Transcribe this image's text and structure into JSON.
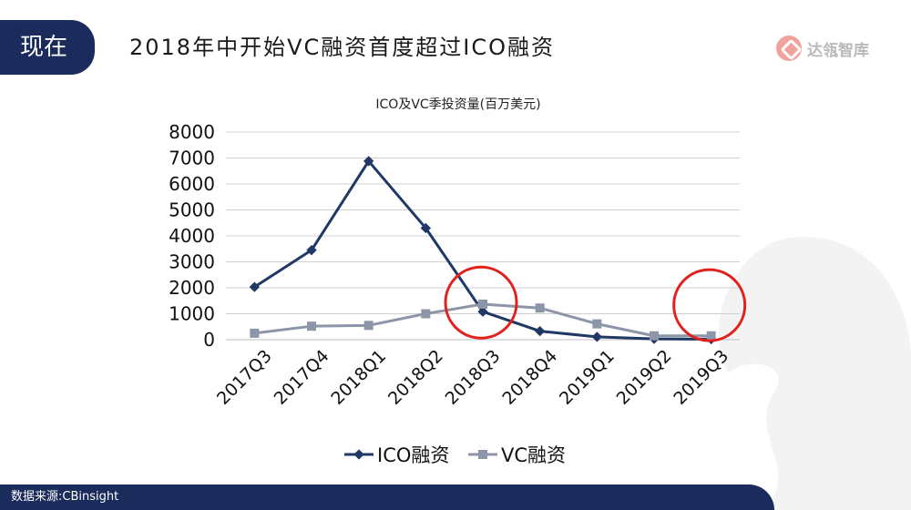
{
  "header": {
    "tab_label": "现在",
    "title": "2018年中开始VC融资首度超过ICO融资",
    "logo_text": "达瓴智库"
  },
  "footer": {
    "source": "数据来源:CBinsight"
  },
  "colors": {
    "navy": "#1a2b5c",
    "ico_series": "#1f3864",
    "vc_series": "#8c96a8",
    "highlight_circle": "#e3211c",
    "gridline": "#d0d0d0"
  },
  "chart_data": {
    "type": "line",
    "title": "ICO及VC季投资量(百万美元)",
    "categories": [
      "2017Q3",
      "2017Q4",
      "2018Q1",
      "2018Q2",
      "2018Q3",
      "2018Q4",
      "2019Q1",
      "2019Q2",
      "2019Q3"
    ],
    "series": [
      {
        "name": "ICO融资",
        "marker": "diamond",
        "values": [
          2030,
          3450,
          6880,
          4300,
          1080,
          330,
          110,
          30,
          20
        ]
      },
      {
        "name": "VC融资",
        "marker": "square",
        "values": [
          250,
          520,
          550,
          1000,
          1370,
          1220,
          610,
          150,
          150
        ]
      }
    ],
    "ylim": [
      0,
      8000
    ],
    "yticks": [
      0,
      1000,
      2000,
      3000,
      4000,
      5000,
      6000,
      7000,
      8000
    ],
    "grid": true,
    "legend_position": "bottom",
    "annotations": [
      {
        "type": "circle",
        "at_category": "2018Q3",
        "at_value": 1150
      },
      {
        "type": "circle",
        "at_category": "2019Q3",
        "at_value": 1050
      }
    ]
  }
}
